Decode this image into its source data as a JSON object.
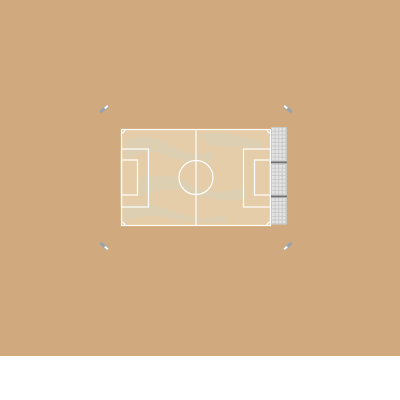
{
  "scene": {
    "ground_color": "#d0aa7e",
    "pitch": {
      "turf_color": "#e6cda9",
      "patch_color": "#d6d2b8",
      "line_color": "#ffffff"
    },
    "stand": {
      "seat_color": "#e4e4e4",
      "aisle_color": "#6e6e6e",
      "rows": 4,
      "seats_per_row": 26
    },
    "floodlights": {
      "count": 4,
      "color": "#9aa3ad",
      "head_color": "#ffffff"
    }
  }
}
